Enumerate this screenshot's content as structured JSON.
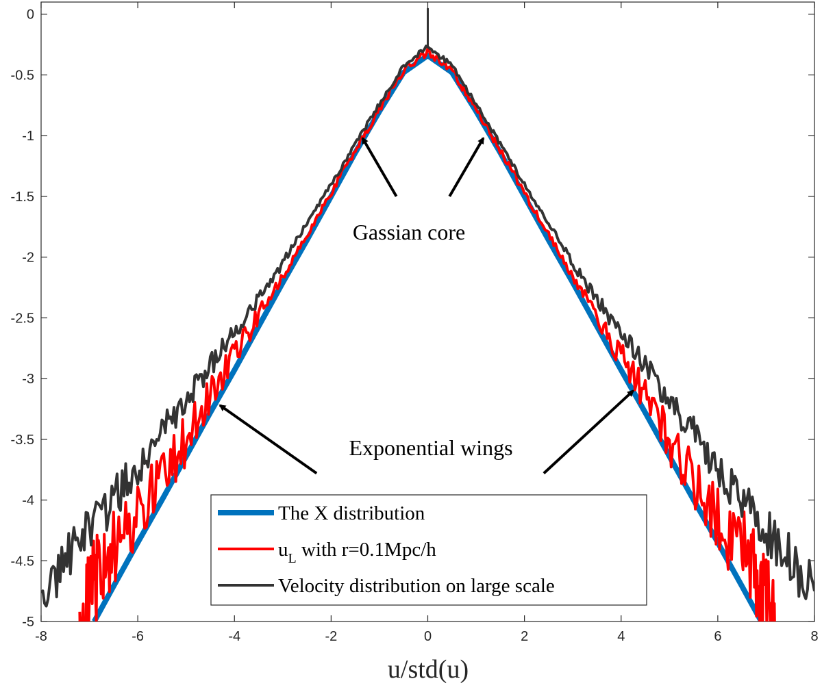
{
  "chart_data": {
    "type": "line",
    "title": "",
    "xlabel": "u/std(u)",
    "ylabel": "",
    "xlim": [
      -8,
      8
    ],
    "ylim": [
      -5,
      0.1
    ],
    "xticks": [
      "-8",
      "-6",
      "-4",
      "-2",
      "0",
      "2",
      "4",
      "6",
      "8"
    ],
    "yticks": [
      "0",
      "-0.5",
      "-1",
      "-1.5",
      "-2",
      "-2.5",
      "-3",
      "-3.5",
      "-4",
      "-4.5",
      "-5"
    ],
    "grid": false,
    "legend_position": "bottom-center",
    "series": [
      {
        "name": "The X distribution",
        "color": "#0072BD",
        "x": [
          -6.9,
          -6.5,
          -6.0,
          -5.5,
          -5.0,
          -4.5,
          -4.0,
          -3.5,
          -3.0,
          -2.5,
          -2.0,
          -1.5,
          -1.0,
          -0.5,
          0.0,
          0.5,
          1.0,
          1.5,
          2.0,
          2.5,
          3.0,
          3.5,
          4.0,
          4.5,
          5.0,
          5.5,
          6.0,
          6.5,
          6.9
        ],
        "y": [
          -5.0,
          -4.71,
          -4.35,
          -4.0,
          -3.64,
          -3.28,
          -2.93,
          -2.57,
          -2.21,
          -1.86,
          -1.5,
          -1.14,
          -0.8,
          -0.48,
          -0.34,
          -0.48,
          -0.8,
          -1.14,
          -1.5,
          -1.86,
          -2.21,
          -2.57,
          -2.93,
          -3.28,
          -3.64,
          -4.0,
          -4.35,
          -4.71,
          -5.0
        ]
      },
      {
        "name": "u_L with r=0.1Mpc/h",
        "color": "#FF0000",
        "x": [
          -7.2,
          -7.0,
          -6.8,
          -6.5,
          -6.0,
          -5.5,
          -5.0,
          -4.5,
          -4.0,
          -3.5,
          -3.0,
          -2.5,
          -2.0,
          -1.5,
          -1.0,
          -0.5,
          0.0,
          0.5,
          1.0,
          1.5,
          2.0,
          2.5,
          3.0,
          3.5,
          4.0,
          4.5,
          5.0,
          5.5,
          6.0,
          6.5,
          6.8,
          7.0,
          7.2
        ],
        "y": [
          -5.0,
          -4.8,
          -4.6,
          -4.4,
          -4.15,
          -3.85,
          -3.5,
          -3.15,
          -2.82,
          -2.48,
          -2.16,
          -1.82,
          -1.47,
          -1.12,
          -0.78,
          -0.46,
          -0.31,
          -0.46,
          -0.78,
          -1.12,
          -1.47,
          -1.82,
          -2.16,
          -2.48,
          -2.82,
          -3.15,
          -3.5,
          -3.85,
          -4.15,
          -4.4,
          -4.6,
          -4.8,
          -5.0
        ]
      },
      {
        "name": "Velocity distribution on large scale",
        "color": "#333333",
        "x": [
          -8.0,
          -7.5,
          -7.0,
          -6.5,
          -6.0,
          -5.5,
          -5.0,
          -4.5,
          -4.0,
          -3.5,
          -3.0,
          -2.5,
          -2.0,
          -1.5,
          -1.0,
          -0.5,
          0.0,
          0.5,
          1.0,
          1.5,
          2.0,
          2.5,
          3.0,
          3.5,
          4.0,
          4.5,
          5.0,
          5.5,
          6.0,
          6.5,
          7.0,
          7.5,
          8.0
        ],
        "y": [
          -4.75,
          -4.5,
          -4.25,
          -4.0,
          -3.72,
          -3.45,
          -3.17,
          -2.9,
          -2.62,
          -2.35,
          -2.05,
          -1.72,
          -1.4,
          -1.07,
          -0.74,
          -0.42,
          -0.27,
          -0.42,
          -0.74,
          -1.07,
          -1.4,
          -1.72,
          -2.05,
          -2.35,
          -2.62,
          -2.9,
          -3.17,
          -3.45,
          -3.72,
          -4.0,
          -4.25,
          -4.5,
          -4.75
        ]
      }
    ],
    "annotations": [
      {
        "text": "Gassian core",
        "arrows": [
          {
            "from": [
              -0.65,
              -1.5
            ],
            "to": [
              -1.35,
              -1.02
            ]
          },
          {
            "from": [
              0.45,
              -1.5
            ],
            "to": [
              1.15,
              -1.02
            ]
          }
        ]
      },
      {
        "text": "Exponential wings",
        "arrows": [
          {
            "from": [
              -2.3,
              -3.78
            ],
            "to": [
              -4.3,
              -3.22
            ]
          },
          {
            "from": [
              2.4,
              -3.78
            ],
            "to": [
              4.25,
              -3.1
            ]
          }
        ]
      }
    ],
    "legend": {
      "entries": [
        {
          "text": "The X distribution"
        },
        {
          "text_main": "u",
          "text_sub": "L",
          "text_rest": " with r=0.1Mpc/h"
        },
        {
          "text": "Velocity distribution on large scale"
        }
      ]
    }
  }
}
